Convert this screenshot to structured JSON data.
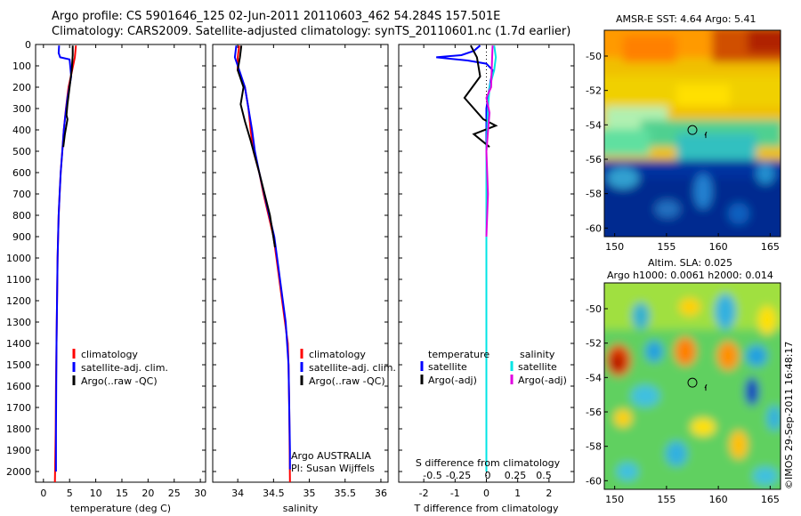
{
  "header": {
    "line1": "Argo profile: CS 5901646_125 02-Jun-2011 20110603_462 54.284S 157.501E",
    "line2": "Climatology: CARS2009. Satellite-adjusted climatology: synTS_20110601.nc (1.7d earlier)"
  },
  "colors": {
    "climatology": "#ff0000",
    "satellite": "#0000ff",
    "argo": "#000000",
    "satellite_salinity": "#00e5e5",
    "argo_adj_salinity": "#e000e0"
  },
  "chart_data": [
    {
      "type": "line",
      "name": "temperature-profile",
      "xlabel": "temperature (deg C)",
      "ylabel": "",
      "xlim": [
        -1.5,
        31
      ],
      "ylim": [
        2050,
        0
      ],
      "xticks": [
        0,
        5,
        10,
        15,
        20,
        25,
        30
      ],
      "yticks": [
        0,
        100,
        200,
        300,
        400,
        500,
        600,
        700,
        800,
        900,
        1000,
        1100,
        1200,
        1300,
        1400,
        1500,
        1600,
        1700,
        1800,
        1900,
        2000
      ],
      "legend": [
        "climatology",
        "satellite-adj. clim.",
        "Argo(..raw -QC)"
      ],
      "series": [
        {
          "name": "climatology",
          "color": "#ff0000",
          "points": [
            [
              6.2,
              5
            ],
            [
              6.0,
              60
            ],
            [
              5.5,
              120
            ],
            [
              4.8,
              200
            ],
            [
              4.3,
              300
            ],
            [
              3.9,
              400
            ],
            [
              3.6,
              500
            ],
            [
              3.3,
              600
            ],
            [
              3.1,
              700
            ],
            [
              2.9,
              800
            ],
            [
              2.8,
              900
            ],
            [
              2.7,
              1000
            ],
            [
              2.6,
              1200
            ],
            [
              2.5,
              1400
            ],
            [
              2.4,
              1600
            ],
            [
              2.35,
              1800
            ],
            [
              2.2,
              2050
            ]
          ]
        },
        {
          "name": "satellite-adj. clim.",
          "color": "#0000ff",
          "points": [
            [
              3.0,
              5
            ],
            [
              2.9,
              40
            ],
            [
              3.2,
              60
            ],
            [
              5.0,
              70
            ],
            [
              5.3,
              150
            ],
            [
              4.6,
              250
            ],
            [
              4.2,
              330
            ],
            [
              3.9,
              400
            ],
            [
              3.6,
              500
            ],
            [
              3.3,
              600
            ],
            [
              3.1,
              700
            ],
            [
              2.9,
              800
            ],
            [
              2.8,
              900
            ],
            [
              2.7,
              1000
            ],
            [
              2.6,
              1200
            ],
            [
              2.5,
              1400
            ],
            [
              2.45,
              1600
            ],
            [
              2.4,
              1800
            ],
            [
              2.4,
              2000
            ]
          ]
        },
        {
          "name": "Argo(..raw -QC)",
          "color": "#000000",
          "points": [
            [
              5.6,
              5
            ],
            [
              5.6,
              50
            ],
            [
              5.4,
              120
            ],
            [
              5.0,
              200
            ],
            [
              4.6,
              280
            ],
            [
              4.4,
              330
            ],
            [
              4.6,
              350
            ],
            [
              4.1,
              420
            ],
            [
              3.8,
              480
            ]
          ]
        }
      ]
    },
    {
      "type": "line",
      "name": "salinity-profile",
      "xlabel": "salinity",
      "ylabel": "",
      "xlim": [
        33.65,
        36.1
      ],
      "ylim": [
        2050,
        0
      ],
      "xticks": [
        34,
        34.5,
        35,
        35.5,
        36
      ],
      "legend": [
        "climatology",
        "satellite-adj. clim.",
        "Argo(..raw -QC)"
      ],
      "annotation": [
        "Argo AUSTRALIA",
        "PI: Susan Wijffels"
      ],
      "series": [
        {
          "name": "climatology",
          "color": "#ff0000",
          "points": [
            [
              34.02,
              5
            ],
            [
              34.0,
              60
            ],
            [
              34.0,
              120
            ],
            [
              34.1,
              200
            ],
            [
              34.15,
              300
            ],
            [
              34.18,
              400
            ],
            [
              34.22,
              500
            ],
            [
              34.3,
              600
            ],
            [
              34.36,
              700
            ],
            [
              34.43,
              800
            ],
            [
              34.5,
              900
            ],
            [
              34.54,
              1000
            ],
            [
              34.58,
              1100
            ],
            [
              34.62,
              1200
            ],
            [
              34.66,
              1300
            ],
            [
              34.7,
              1400
            ],
            [
              34.71,
              1500
            ],
            [
              34.72,
              1700
            ],
            [
              34.73,
              2050
            ]
          ]
        },
        {
          "name": "satellite-adj. clim.",
          "color": "#0000ff",
          "points": [
            [
              33.98,
              5
            ],
            [
              33.96,
              60
            ],
            [
              34.03,
              130
            ],
            [
              34.1,
              200
            ],
            [
              34.15,
              300
            ],
            [
              34.2,
              400
            ],
            [
              34.24,
              500
            ],
            [
              34.3,
              600
            ],
            [
              34.37,
              700
            ],
            [
              34.44,
              800
            ],
            [
              34.51,
              900
            ],
            [
              34.55,
              1000
            ],
            [
              34.59,
              1100
            ],
            [
              34.63,
              1200
            ],
            [
              34.67,
              1300
            ],
            [
              34.69,
              1400
            ],
            [
              34.71,
              1500
            ],
            [
              34.72,
              1700
            ],
            [
              34.73,
              1900
            ],
            [
              34.73,
              1990
            ]
          ]
        },
        {
          "name": "Argo(..raw -QC)",
          "color": "#000000",
          "points": [
            [
              34.05,
              5
            ],
            [
              34.03,
              60
            ],
            [
              34.0,
              120
            ],
            [
              34.08,
              200
            ],
            [
              34.04,
              280
            ],
            [
              34.1,
              360
            ],
            [
              34.18,
              450
            ],
            [
              34.3,
              600
            ],
            [
              34.45,
              800
            ],
            [
              34.52,
              950
            ]
          ]
        }
      ]
    },
    {
      "type": "line",
      "name": "difference-profile",
      "xlabel": "T difference from climatology",
      "xlabel_top": "S difference from climatology",
      "xlim": [
        -2.8,
        2.8
      ],
      "ylim": [
        2050,
        0
      ],
      "xticks": [
        -2,
        -1,
        0,
        1,
        2
      ],
      "xticks_top": [
        "-0.5",
        "-0.25",
        "0",
        "0.25",
        "0.5"
      ],
      "legend": {
        "temperature_header": "temperature",
        "salinity_header": "salinity",
        "temperature_items": [
          "satellite",
          "Argo(-adj)"
        ],
        "salinity_items": [
          "satellite",
          "Argo(-adj)"
        ]
      },
      "series": [
        {
          "name": "satellite",
          "group": "temperature",
          "color": "#0000ff",
          "points": [
            [
              -0.2,
              5
            ],
            [
              -0.4,
              30
            ],
            [
              -0.8,
              50
            ],
            [
              -1.6,
              60
            ],
            [
              -0.6,
              75
            ],
            [
              0,
              90
            ],
            [
              0.2,
              120
            ],
            [
              0.1,
              200
            ],
            [
              0,
              300
            ],
            [
              0,
              500
            ],
            [
              0,
              800
            ],
            [
              0,
              1200
            ],
            [
              0,
              1600
            ],
            [
              0,
              2000
            ]
          ]
        },
        {
          "name": "Argo(-adj)",
          "group": "temperature",
          "color": "#000000",
          "points": [
            [
              -0.5,
              5
            ],
            [
              -0.3,
              60
            ],
            [
              -0.2,
              150
            ],
            [
              -0.7,
              250
            ],
            [
              -0.1,
              350
            ],
            [
              0.3,
              380
            ],
            [
              -0.4,
              420
            ],
            [
              0.1,
              480
            ]
          ]
        },
        {
          "name": "satellite",
          "group": "salinity",
          "color": "#00e5e5",
          "points": [
            [
              0.25,
              5
            ],
            [
              0.3,
              60
            ],
            [
              0.25,
              120
            ],
            [
              0.1,
              200
            ],
            [
              0.05,
              300
            ],
            [
              0,
              500
            ],
            [
              0,
              800
            ],
            [
              0,
              1200
            ],
            [
              0,
              1600
            ],
            [
              0,
              2000
            ]
          ]
        },
        {
          "name": "Argo(-adj)",
          "group": "salinity",
          "color": "#e000e0",
          "points": [
            [
              0.2,
              5
            ],
            [
              0.18,
              80
            ],
            [
              0.15,
              200
            ],
            [
              0.0,
              250
            ],
            [
              0.1,
              320
            ],
            [
              0.0,
              500
            ],
            [
              0.05,
              700
            ],
            [
              0,
              900
            ]
          ]
        }
      ]
    },
    {
      "type": "heatmap",
      "name": "sst-map",
      "title": "AMSR-E SST: 4.64  Argo: 5.41",
      "xlim": [
        149,
        166
      ],
      "ylim": [
        -60.5,
        -48.5
      ],
      "xticks": [
        150,
        155,
        160,
        165
      ],
      "yticks": [
        -50,
        -52,
        -54,
        -56,
        -58,
        -60
      ],
      "marker": {
        "lon": 157.5,
        "lat": -54.3
      }
    },
    {
      "type": "heatmap",
      "name": "sla-map",
      "title_line1": "Altim. SLA: 0.025",
      "title_line2": "Argo h1000: 0.0061 h2000: 0.014",
      "xlim": [
        149,
        166
      ],
      "ylim": [
        -60.5,
        -48.5
      ],
      "xticks": [
        150,
        155,
        160,
        165
      ],
      "yticks": [
        -50,
        -52,
        -54,
        -56,
        -58,
        -60
      ],
      "marker": {
        "lon": 157.5,
        "lat": -54.3
      }
    }
  ],
  "footer": {
    "watermark": "©IMOS 29-Sep-2011 16:48:17"
  }
}
